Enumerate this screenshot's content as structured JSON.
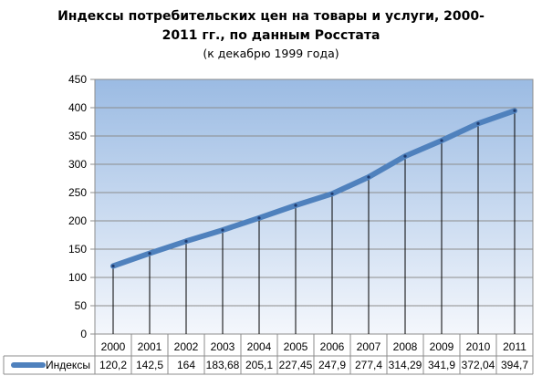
{
  "chart_data": {
    "type": "line",
    "title": "Индексы потребительских цен на товары и услуги, 2000-2011 гг., по данным Росстата",
    "subtitle": "(к декабрю 1999 года)",
    "xlabel": "",
    "ylabel": "",
    "ylim": [
      0,
      450
    ],
    "yticks": [
      "0",
      "50",
      "100",
      "150",
      "200",
      "250",
      "300",
      "350",
      "400",
      "450"
    ],
    "grid": true,
    "categories": [
      "2000",
      "2001",
      "2002",
      "2003",
      "2004",
      "2005",
      "2006",
      "2007",
      "2008",
      "2009",
      "2010",
      "2011"
    ],
    "series": [
      {
        "name": "Индексы",
        "values": [
          120.2,
          142.5,
          164,
          183.68,
          205.1,
          227.45,
          247.9,
          277.4,
          314.29,
          341.9,
          372.04,
          394.7
        ],
        "labels": [
          "120,2",
          "142,5",
          "164",
          "183,68",
          "205,1",
          "227,45",
          "247,9",
          "277,4",
          "314,29",
          "341,9",
          "372,04",
          "394,7"
        ],
        "color": "#4f81bd"
      }
    ],
    "legend": "data-table-left",
    "colors": {
      "plot_top": "#9bbbe3",
      "plot_bottom": "#f4f7fc",
      "line": "#4f81bd"
    }
  }
}
